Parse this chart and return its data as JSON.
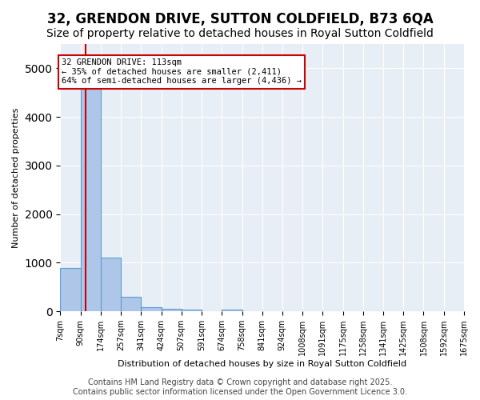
{
  "title": "32, GRENDON DRIVE, SUTTON COLDFIELD, B73 6QA",
  "subtitle": "Size of property relative to detached houses in Royal Sutton Coldfield",
  "xlabel": "Distribution of detached houses by size in Royal Sutton Coldfield",
  "ylabel": "Number of detached properties",
  "bins": [
    "7sqm",
    "90sqm",
    "174sqm",
    "257sqm",
    "341sqm",
    "424sqm",
    "507sqm",
    "591sqm",
    "674sqm",
    "758sqm",
    "841sqm",
    "924sqm",
    "1008sqm",
    "1091sqm",
    "1175sqm",
    "1258sqm",
    "1341sqm",
    "1425sqm",
    "1508sqm",
    "1592sqm",
    "1675sqm"
  ],
  "bin_edges": [
    7,
    90,
    174,
    257,
    341,
    424,
    507,
    591,
    674,
    758,
    841,
    924,
    1008,
    1091,
    1175,
    1258,
    1341,
    1425,
    1508,
    1592,
    1675
  ],
  "counts": [
    890,
    4600,
    1100,
    295,
    80,
    60,
    40,
    0,
    40,
    0,
    0,
    0,
    0,
    0,
    0,
    0,
    0,
    0,
    0,
    0
  ],
  "bar_color": "#aec6e8",
  "bar_edge_color": "#5a9fd4",
  "vline_x": 113,
  "vline_color": "#cc0000",
  "annotation_text": "32 GRENDON DRIVE: 113sqm\n← 35% of detached houses are smaller (2,411)\n64% of semi-detached houses are larger (4,436) →",
  "annotation_box_color": "#ffffff",
  "annotation_border_color": "#cc0000",
  "ylim": [
    0,
    5500
  ],
  "bg_color": "#e8eef5",
  "footer": "Contains HM Land Registry data © Crown copyright and database right 2025.\nContains public sector information licensed under the Open Government Licence 3.0.",
  "title_fontsize": 12,
  "subtitle_fontsize": 10,
  "footer_fontsize": 7
}
